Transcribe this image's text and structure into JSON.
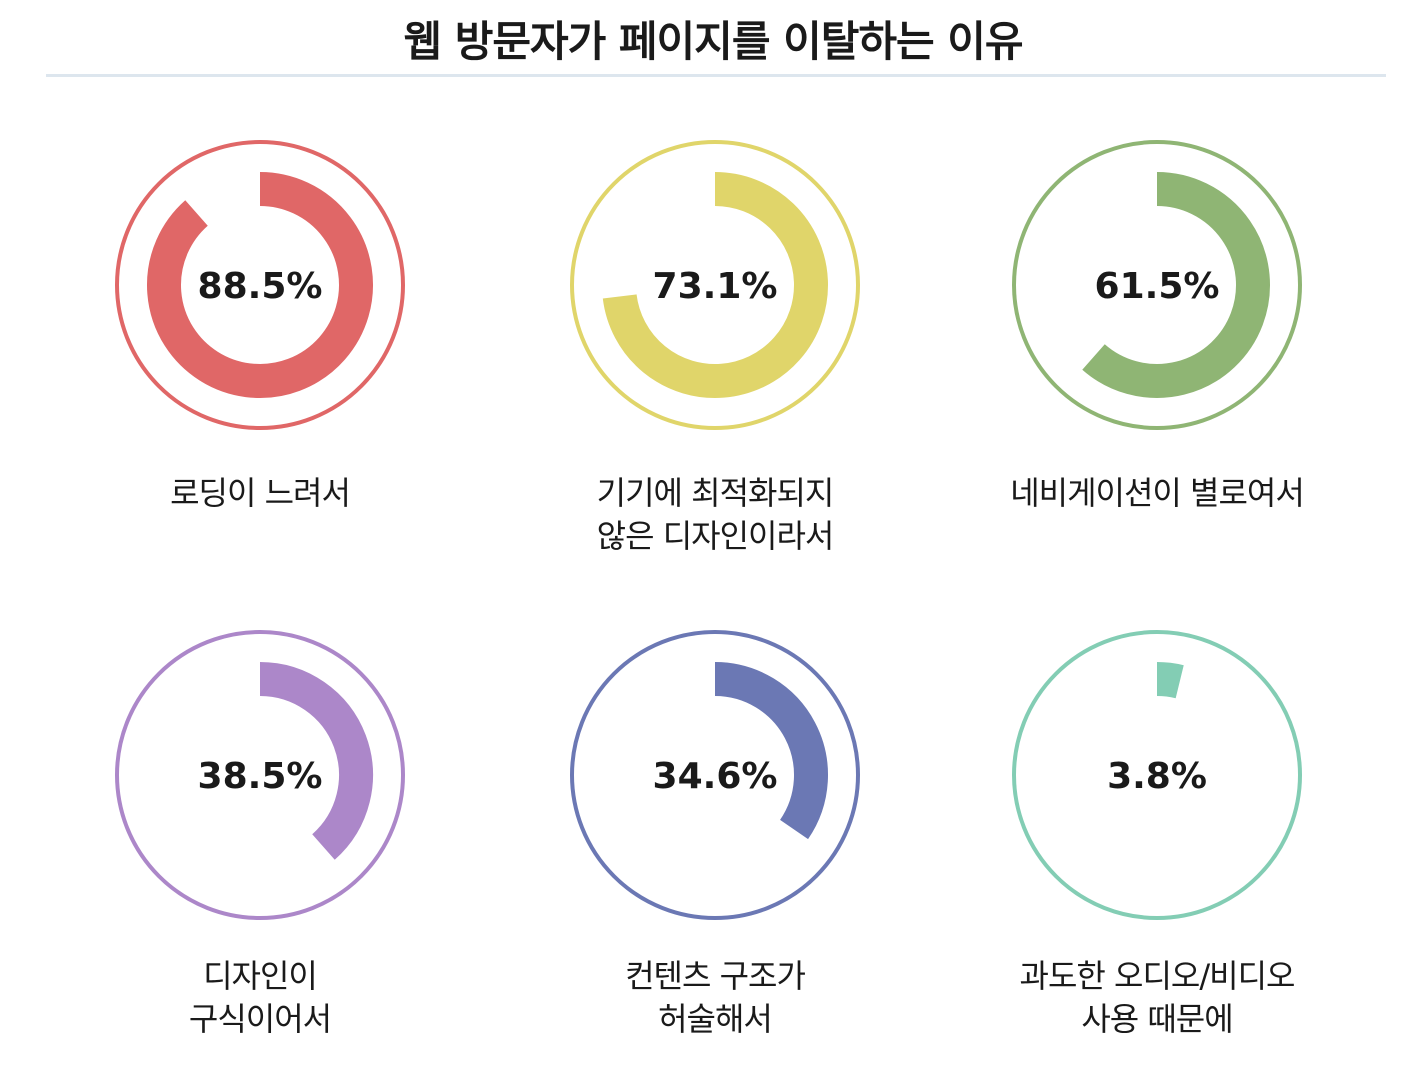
{
  "title": "웹 방문자가 페이지를 이탈하는 이유",
  "chart_data": {
    "type": "donut",
    "title": "웹 방문자가 페이지를 이탈하는 이유",
    "unit": "%",
    "range": [
      0,
      100
    ],
    "items": [
      {
        "label_lines": [
          "로딩이 느려서"
        ],
        "value": 88.5,
        "display": "88.5%",
        "color": "#e06767"
      },
      {
        "label_lines": [
          "기기에 최적화되지",
          "않은 디자인이라서"
        ],
        "value": 73.1,
        "display": "73.1%",
        "color": "#e0d56a"
      },
      {
        "label_lines": [
          "네비게이션이 별로여서"
        ],
        "value": 61.5,
        "display": "61.5%",
        "color": "#8fb574"
      },
      {
        "label_lines": [
          "디자인이",
          "구식이어서"
        ],
        "value": 38.5,
        "display": "38.5%",
        "color": "#ac87c9"
      },
      {
        "label_lines": [
          "컨텐츠 구조가",
          "허술해서"
        ],
        "value": 34.6,
        "display": "34.6%",
        "color": "#6b78b4"
      },
      {
        "label_lines": [
          "과도한 오디오/비디오",
          "사용 때문에"
        ],
        "value": 3.8,
        "display": "3.8%",
        "color": "#83cdb4"
      }
    ]
  }
}
